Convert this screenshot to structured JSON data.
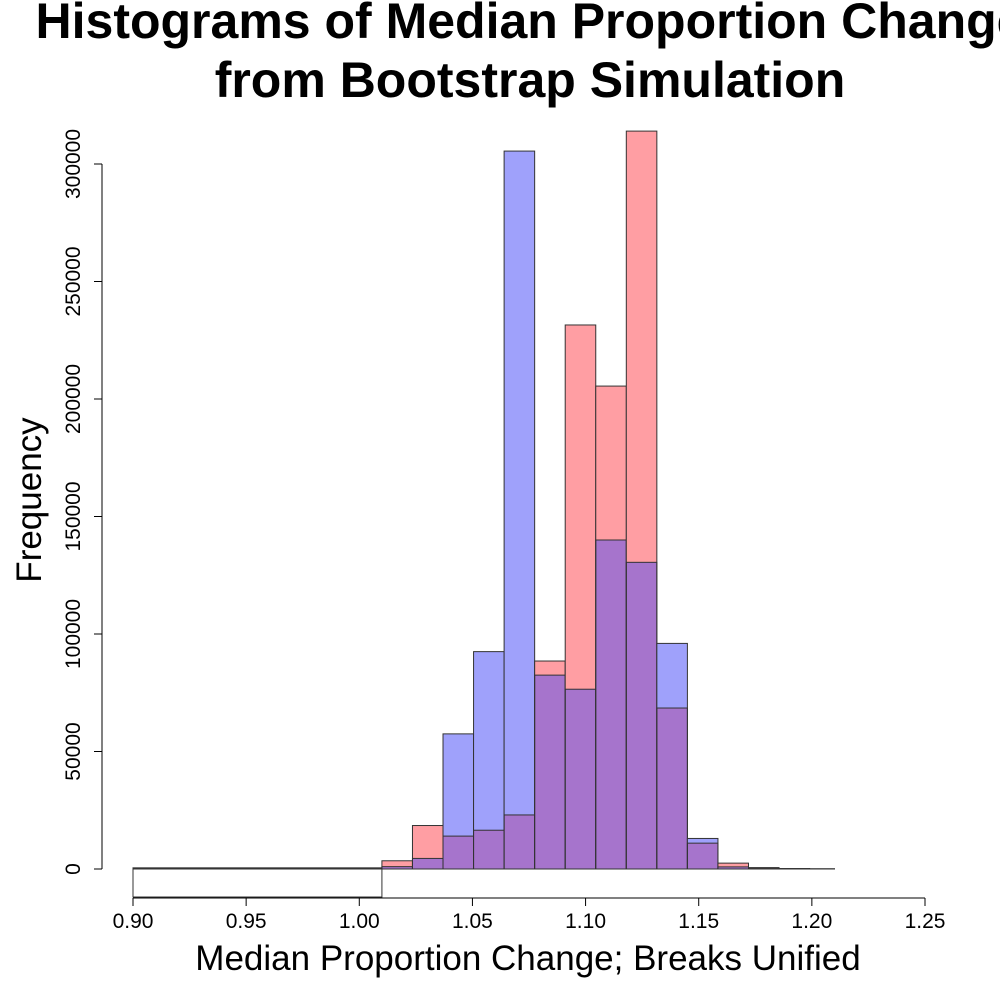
{
  "chart_data": {
    "type": "bar",
    "title_line1": "Histograms of Median Proportion Change",
    "title_line2": "from Bootstrap Simulation",
    "xlabel": "Median Proportion Change; Breaks Unified",
    "ylabel": "Frequency",
    "xlim": [
      0.9,
      1.25
    ],
    "ylim": [
      0,
      315000
    ],
    "x_ticks": [
      "0.90",
      "0.95",
      "1.00",
      "1.05",
      "1.10",
      "1.15",
      "1.20",
      "1.25"
    ],
    "y_ticks": [
      "0",
      "50000",
      "100000",
      "150000",
      "200000",
      "250000",
      "300000"
    ],
    "bin_edges": [
      0.9,
      1.01,
      1.0235,
      1.037,
      1.0505,
      1.064,
      1.0775,
      1.091,
      1.1045,
      1.118,
      1.1315,
      1.145,
      1.1585,
      1.172,
      1.1855,
      1.199,
      1.21
    ],
    "series": [
      {
        "name": "red",
        "color": "#ff9ea3",
        "values": [
          500,
          3500,
          18500,
          14000,
          16500,
          23000,
          88500,
          231500,
          205500,
          314000,
          68500,
          11000,
          2500,
          600,
          200,
          100
        ]
      },
      {
        "name": "blue",
        "color": "#9fa1fb",
        "values": [
          300,
          1000,
          4500,
          57500,
          92500,
          305500,
          82500,
          76500,
          140000,
          130500,
          96000,
          13000,
          900,
          200,
          100,
          50
        ]
      }
    ],
    "overlap_color": "#a674cc",
    "grid": false,
    "legend": "none"
  }
}
